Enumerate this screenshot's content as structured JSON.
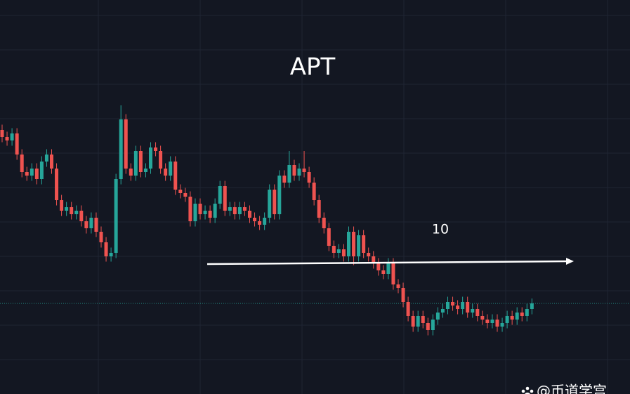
{
  "chart_data": {
    "type": "candlestick",
    "title": "APT",
    "up_color": "#26a69a",
    "down_color": "#ef5350",
    "ylim": [
      6.28,
      17.5
    ],
    "level": 10,
    "watermark": "@币道学宫",
    "open": [
      13.8,
      13.6,
      13.5,
      13.7,
      13.1,
      12.6,
      12.5,
      12.7,
      12.4,
      12.9,
      13.1,
      12.7,
      11.8,
      11.5,
      11.6,
      11.4,
      11.5,
      11.2,
      11.0,
      11.3,
      10.9,
      10.6,
      10.2,
      10.3,
      12.4,
      14.1,
      12.7,
      12.5,
      13.2,
      12.6,
      12.7,
      13.3,
      13.2,
      12.7,
      12.5,
      12.9,
      12.1,
      12.0,
      11.9,
      11.2,
      11.7,
      11.4,
      11.5,
      11.3,
      11.7,
      12.2,
      11.5,
      11.6,
      11.4,
      11.6,
      11.5,
      11.3,
      11.2,
      11.1,
      11.3,
      12.1,
      11.4,
      12.5,
      12.3,
      12.8,
      12.5,
      12.7,
      12.6,
      12.3,
      11.8,
      11.3,
      11.0,
      10.5,
      10.3,
      10.4,
      10.2,
      10.9,
      10.2,
      10.8,
      10.3,
      10.2,
      10.0,
      9.8,
      9.7,
      10.0,
      9.4,
      9.3,
      8.9,
      8.5,
      8.2,
      8.5,
      8.3,
      8.1,
      8.4,
      8.6,
      8.7,
      8.9,
      8.8,
      8.7,
      8.9,
      8.6,
      8.7,
      8.5,
      8.4,
      8.3,
      8.4,
      8.2,
      8.3,
      8.5,
      8.4,
      8.6,
      8.5,
      8.7
    ],
    "high": [
      13.95,
      13.75,
      13.85,
      13.85,
      13.25,
      12.75,
      12.85,
      12.85,
      13.05,
      13.25,
      13.25,
      12.85,
      11.95,
      11.75,
      11.75,
      11.65,
      11.65,
      11.35,
      11.45,
      11.45,
      11.05,
      10.75,
      10.45,
      12.55,
      14.5,
      14.25,
      12.85,
      13.35,
      13.35,
      12.85,
      13.45,
      13.45,
      13.35,
      12.85,
      13.05,
      13.05,
      12.25,
      12.15,
      12.05,
      11.85,
      11.85,
      11.65,
      11.65,
      11.85,
      12.35,
      12.35,
      11.75,
      11.75,
      11.75,
      11.75,
      11.65,
      11.45,
      11.35,
      11.45,
      12.25,
      12.25,
      12.65,
      12.65,
      13.2,
      12.95,
      12.85,
      13.2,
      12.75,
      12.45,
      11.95,
      11.45,
      11.15,
      10.65,
      10.55,
      10.55,
      11.05,
      11.05,
      10.95,
      10.95,
      10.45,
      10.35,
      10.15,
      9.95,
      10.15,
      10.15,
      9.55,
      9.45,
      9.05,
      8.65,
      8.65,
      8.65,
      8.45,
      8.55,
      8.75,
      8.85,
      9.05,
      9.05,
      8.95,
      9.05,
      9.05,
      8.85,
      8.85,
      8.65,
      8.55,
      8.55,
      8.55,
      8.45,
      8.65,
      8.65,
      8.75,
      8.75,
      8.85,
      9.0
    ],
    "low": [
      13.45,
      13.35,
      13.35,
      12.95,
      12.45,
      12.35,
      12.35,
      12.25,
      12.25,
      12.75,
      12.55,
      11.65,
      11.35,
      11.35,
      11.25,
      11.25,
      11.05,
      10.85,
      10.85,
      10.75,
      10.45,
      10.05,
      10.05,
      10.15,
      12.25,
      12.55,
      12.35,
      12.35,
      12.45,
      12.45,
      12.55,
      13.05,
      12.55,
      12.35,
      12.35,
      11.95,
      11.85,
      11.75,
      11.05,
      11.05,
      11.25,
      11.25,
      11.15,
      11.15,
      11.55,
      11.35,
      11.35,
      11.25,
      11.25,
      11.35,
      11.15,
      11.05,
      10.95,
      10.95,
      11.15,
      11.25,
      11.25,
      12.15,
      12.15,
      12.35,
      12.35,
      12.45,
      12.15,
      11.65,
      11.15,
      10.85,
      10.35,
      10.15,
      10.15,
      10.05,
      10.05,
      9.95,
      10.05,
      10.15,
      10.05,
      9.85,
      9.65,
      9.55,
      9.55,
      9.25,
      9.15,
      8.75,
      8.35,
      8.05,
      8.05,
      8.15,
      7.95,
      7.95,
      8.25,
      8.45,
      8.55,
      8.65,
      8.55,
      8.55,
      8.45,
      8.45,
      8.35,
      8.25,
      8.15,
      8.15,
      8.05,
      8.05,
      8.15,
      8.25,
      8.25,
      8.35,
      8.35,
      8.55
    ],
    "close": [
      13.6,
      13.5,
      13.7,
      13.1,
      12.6,
      12.5,
      12.7,
      12.4,
      12.9,
      13.1,
      12.7,
      11.8,
      11.5,
      11.6,
      11.4,
      11.5,
      11.2,
      11.0,
      11.3,
      10.9,
      10.6,
      10.2,
      10.3,
      12.4,
      14.1,
      12.7,
      12.5,
      13.2,
      12.6,
      12.7,
      13.3,
      13.2,
      12.7,
      12.5,
      12.9,
      12.1,
      12.0,
      11.9,
      11.2,
      11.7,
      11.4,
      11.5,
      11.3,
      11.7,
      12.2,
      11.5,
      11.6,
      11.4,
      11.6,
      11.5,
      11.3,
      11.2,
      11.1,
      11.3,
      12.1,
      11.4,
      12.5,
      12.3,
      12.8,
      12.5,
      12.7,
      12.6,
      12.3,
      11.8,
      11.3,
      11.0,
      10.5,
      10.3,
      10.4,
      10.2,
      10.9,
      10.2,
      10.8,
      10.3,
      10.2,
      10.0,
      9.8,
      9.7,
      10.0,
      9.4,
      9.3,
      8.9,
      8.5,
      8.2,
      8.5,
      8.3,
      8.1,
      8.4,
      8.6,
      8.7,
      8.9,
      8.8,
      8.7,
      8.9,
      8.6,
      8.7,
      8.5,
      8.4,
      8.3,
      8.4,
      8.2,
      8.3,
      8.5,
      8.4,
      8.6,
      8.5,
      8.7,
      8.86
    ]
  }
}
